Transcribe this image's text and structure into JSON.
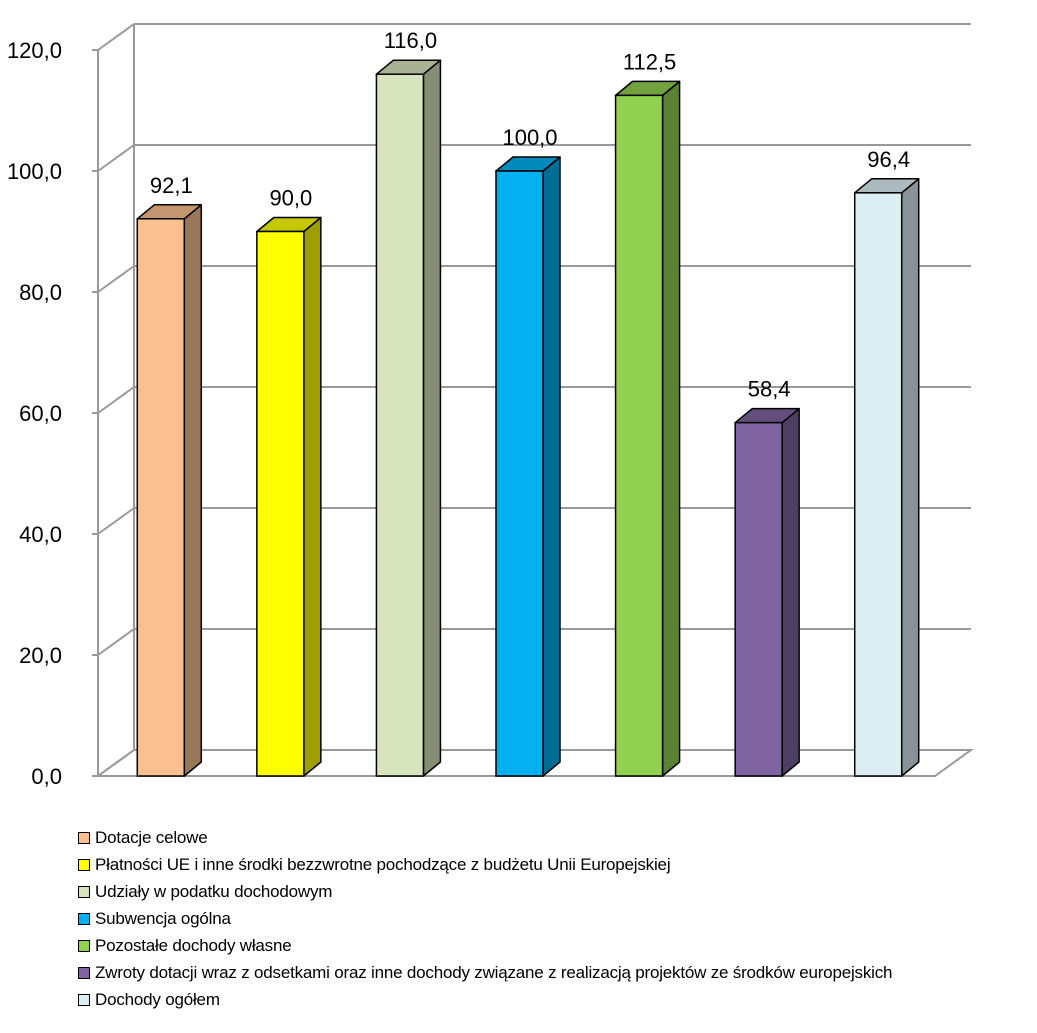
{
  "chart_data": {
    "type": "bar",
    "style": "3d-column",
    "categories": [
      "Dotacje celowe",
      "Płatności UE i inne środki bezzwrotne pochodzące z budżetu Unii Europejskiej",
      "Udziały w podatku dochodowym",
      "Subwencja ogólna",
      "Pozostałe dochody własne",
      "Zwroty dotacji wraz z odsetkami oraz inne dochody związane z realizacją projektów ze środków europejskich",
      "Dochody ogółem"
    ],
    "values": [
      92.1,
      90.0,
      116.0,
      100.0,
      112.5,
      58.4,
      96.4
    ],
    "value_labels": [
      "92,1",
      "90,0",
      "116,0",
      "100,0",
      "112,5",
      "58,4",
      "96,4"
    ],
    "colors": [
      "#FAC090",
      "#FFFF00",
      "#D7E4BD",
      "#00B0F0",
      "#92D050",
      "#8064A2",
      "#DAEEF3"
    ],
    "ylim": [
      0,
      120
    ],
    "yticks": [
      0,
      20,
      40,
      60,
      80,
      100,
      120
    ],
    "ytick_labels": [
      "0,0",
      "20,0",
      "40,0",
      "60,0",
      "80,0",
      "100,0",
      "120,0"
    ],
    "grid": true,
    "legend_position": "bottom-left",
    "title": "",
    "xlabel": "",
    "ylabel": ""
  }
}
